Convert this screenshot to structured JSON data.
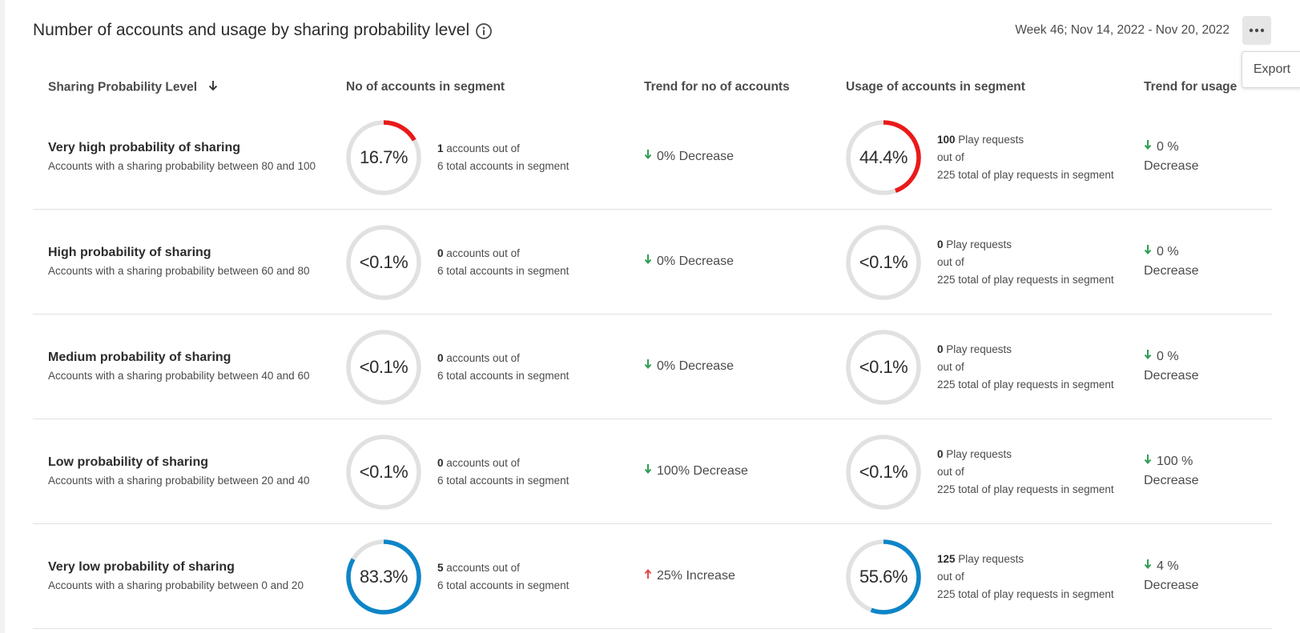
{
  "header": {
    "title": "Number of accounts and usage by sharing probability level",
    "week": "Week 46; Nov 14, 2022 - Nov 20, 2022",
    "export_label": "Export"
  },
  "columns": {
    "level": "Sharing Probability Level",
    "accounts": "No of accounts in segment",
    "trend_accounts": "Trend for no of accounts",
    "usage": "Usage of accounts in segment",
    "trend_usage": "Trend for usage"
  },
  "colors": {
    "high": "#ea1a1a",
    "low": "#0d85c8",
    "track": "#e1e1e1",
    "decrease": "#2d9d52",
    "increase": "#e34850"
  },
  "rows": [
    {
      "name": "Very high probability of sharing",
      "desc": "Accounts with a sharing probability between 80 and 100",
      "acc_pct_label": "16.7%",
      "acc_fraction": 0.167,
      "acc_color": "high",
      "acc_count": "1",
      "acc_text1": " accounts out of",
      "acc_text2": "6 total accounts in segment",
      "trend_dir": "down",
      "trend_text": "0% Decrease",
      "use_pct_label": "44.4%",
      "use_fraction": 0.444,
      "use_color": "high",
      "use_count": "100",
      "use_text1": " Play requests",
      "use_text2": "out of",
      "use_text3": "225 total of play requests in segment",
      "utrend_dir": "down",
      "utrend_value": "0 %",
      "utrend_text": "Decrease"
    },
    {
      "name": "High probability of sharing",
      "desc": "Accounts with a sharing probability between 60 and 80",
      "acc_pct_label": "<0.1%",
      "acc_fraction": 0,
      "acc_color": "high",
      "acc_count": "0",
      "acc_text1": " accounts out of",
      "acc_text2": "6 total accounts in segment",
      "trend_dir": "down",
      "trend_text": "0% Decrease",
      "use_pct_label": "<0.1%",
      "use_fraction": 0,
      "use_color": "high",
      "use_count": "0",
      "use_text1": " Play requests",
      "use_text2": "out of",
      "use_text3": "225 total of play requests in segment",
      "utrend_dir": "down",
      "utrend_value": "0 %",
      "utrend_text": "Decrease"
    },
    {
      "name": "Medium probability of sharing",
      "desc": "Accounts with a sharing probability between 40 and 60",
      "acc_pct_label": "<0.1%",
      "acc_fraction": 0,
      "acc_color": "high",
      "acc_count": "0",
      "acc_text1": " accounts out of",
      "acc_text2": "6 total accounts in segment",
      "trend_dir": "down",
      "trend_text": "0% Decrease",
      "use_pct_label": "<0.1%",
      "use_fraction": 0,
      "use_color": "high",
      "use_count": "0",
      "use_text1": " Play requests",
      "use_text2": "out of",
      "use_text3": "225 total of play requests in segment",
      "utrend_dir": "down",
      "utrend_value": "0 %",
      "utrend_text": "Decrease"
    },
    {
      "name": "Low probability of sharing",
      "desc": "Accounts with a sharing probability between 20 and 40",
      "acc_pct_label": "<0.1%",
      "acc_fraction": 0,
      "acc_color": "low",
      "acc_count": "0",
      "acc_text1": " accounts out of",
      "acc_text2": "6 total accounts in segment",
      "trend_dir": "down",
      "trend_text": "100% Decrease",
      "use_pct_label": "<0.1%",
      "use_fraction": 0,
      "use_color": "low",
      "use_count": "0",
      "use_text1": " Play requests",
      "use_text2": "out of",
      "use_text3": "225 total of play requests in segment",
      "utrend_dir": "down",
      "utrend_value": "100 %",
      "utrend_text": "Decrease"
    },
    {
      "name": "Very low probability of sharing",
      "desc": "Accounts with a sharing probability between 0 and 20",
      "acc_pct_label": "83.3%",
      "acc_fraction": 0.833,
      "acc_color": "low",
      "acc_count": "5",
      "acc_text1": " accounts out of",
      "acc_text2": "6 total accounts in segment",
      "trend_dir": "up",
      "trend_text": "25% Increase",
      "use_pct_label": "55.6%",
      "use_fraction": 0.556,
      "use_color": "low",
      "use_count": "125",
      "use_text1": " Play requests",
      "use_text2": "out of",
      "use_text3": "225 total of play requests in segment",
      "utrend_dir": "down",
      "utrend_value": "4 %",
      "utrend_text": "Decrease"
    }
  ]
}
